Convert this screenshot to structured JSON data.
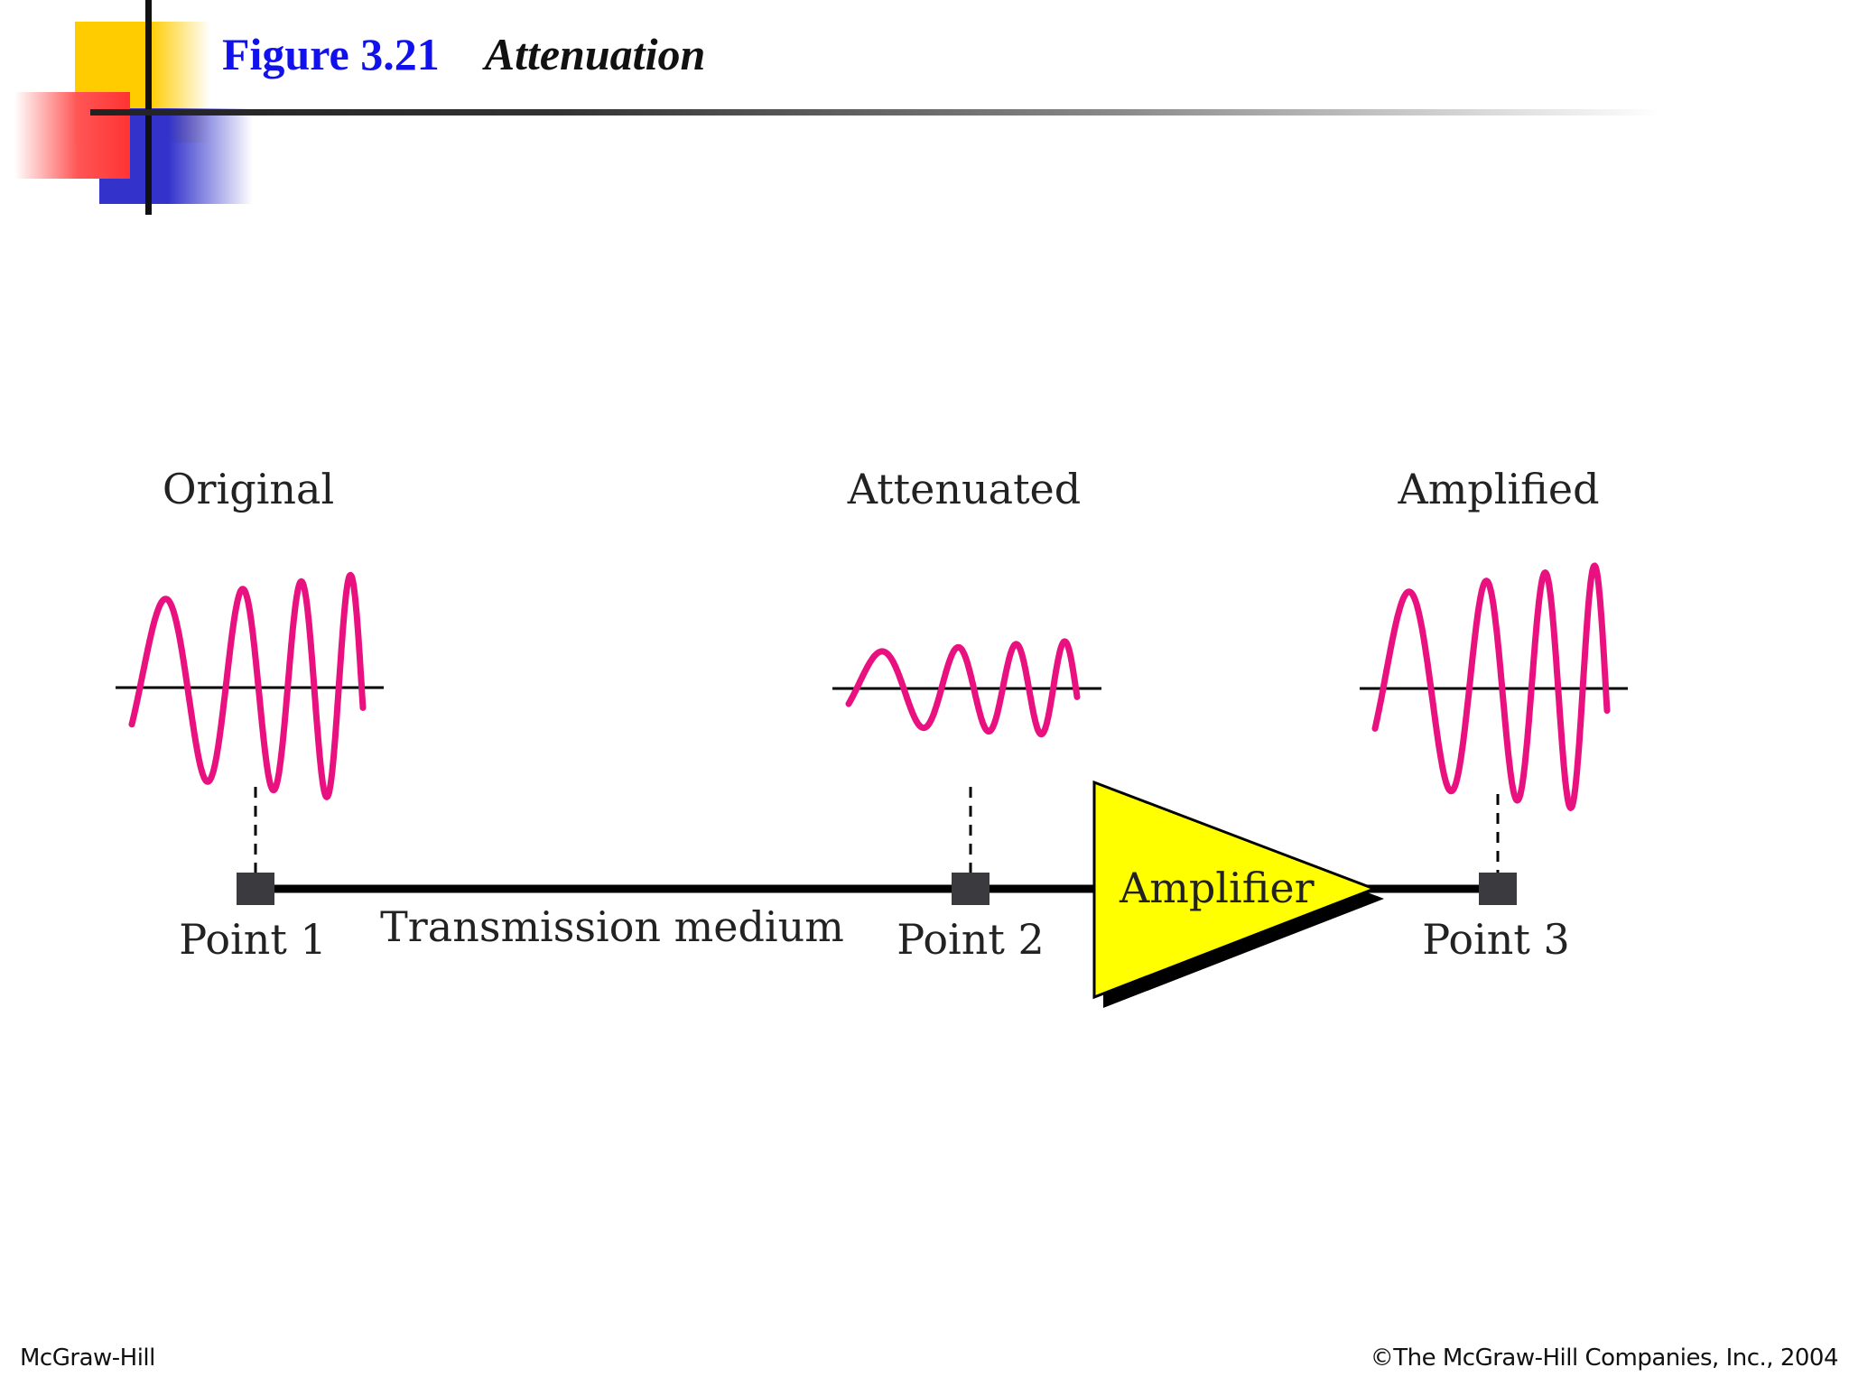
{
  "slide": {
    "figure_number": "Figure 3.21",
    "figure_title": "Attenuation"
  },
  "diagram": {
    "signals": [
      {
        "label": "Original"
      },
      {
        "label": "Attenuated"
      },
      {
        "label": "Amplified"
      }
    ],
    "points": [
      {
        "label": "Point 1"
      },
      {
        "label": "Point 2"
      },
      {
        "label": "Point 3"
      }
    ],
    "medium_label": "Transmission medium",
    "amplifier_label": "Amplifier",
    "colors": {
      "signal": "#e8117f",
      "amplifier_fill": "#ffff00",
      "point_marker": "#3a3a3f"
    }
  },
  "footer": {
    "left": "McGraw-Hill",
    "right": "©The McGraw-Hill Companies, Inc., 2004"
  }
}
